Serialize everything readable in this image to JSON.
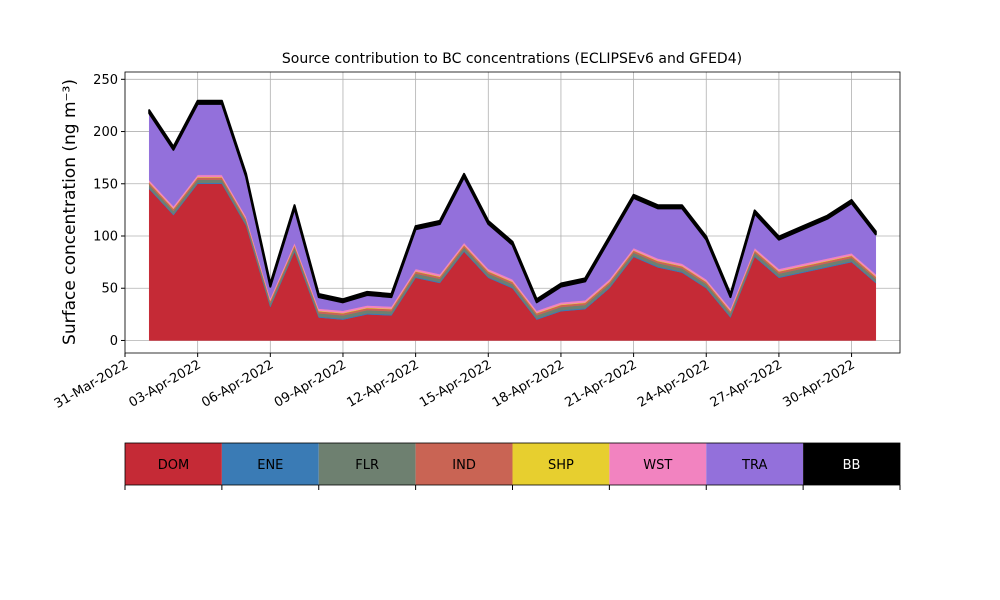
{
  "chart_data": {
    "type": "stacked_area",
    "title": "Source contribution to BC concentrations (ECLIPSEv6 and GFED4)",
    "ylabel": "Surface concentration (ng m⁻³)",
    "x": [
      "2022-04-01",
      "2022-04-02",
      "2022-04-03",
      "2022-04-04",
      "2022-04-05",
      "2022-04-06",
      "2022-04-07",
      "2022-04-08",
      "2022-04-09",
      "2022-04-10",
      "2022-04-11",
      "2022-04-12",
      "2022-04-13",
      "2022-04-14",
      "2022-04-15",
      "2022-04-16",
      "2022-04-17",
      "2022-04-18",
      "2022-04-19",
      "2022-04-20",
      "2022-04-21",
      "2022-04-22",
      "2022-04-23",
      "2022-04-24",
      "2022-04-25",
      "2022-04-26",
      "2022-04-27",
      "2022-04-28",
      "2022-04-29",
      "2022-04-30",
      "2022-05-01"
    ],
    "series": [
      {
        "name": "DOM",
        "color": "#c52a36",
        "values": [
          145,
          120,
          150,
          150,
          110,
          32,
          85,
          22,
          20,
          25,
          24,
          60,
          55,
          85,
          60,
          50,
          20,
          28,
          30,
          50,
          80,
          70,
          65,
          50,
          22,
          80,
          60,
          65,
          70,
          75,
          55
        ]
      },
      {
        "name": "ENE",
        "color": "#3a7bb5",
        "values": [
          1,
          1,
          1,
          1,
          1,
          1,
          1,
          1,
          1,
          1,
          1,
          1,
          1,
          1,
          1,
          1,
          1,
          1,
          1,
          1,
          1,
          1,
          1,
          1,
          1,
          1,
          1,
          1,
          1,
          1,
          1
        ]
      },
      {
        "name": "FLR",
        "color": "#6e8070",
        "values": [
          3,
          3,
          3,
          3,
          3,
          3,
          3,
          3,
          3,
          3,
          3,
          3,
          3,
          3,
          3,
          3,
          3,
          3,
          3,
          3,
          3,
          3,
          3,
          3,
          3,
          3,
          3,
          3,
          3,
          3,
          3
        ]
      },
      {
        "name": "IND",
        "color": "#c96454",
        "values": [
          2,
          2,
          2,
          2,
          2,
          2,
          2,
          2,
          2,
          2,
          2,
          2,
          2,
          2,
          2,
          2,
          2,
          2,
          2,
          2,
          2,
          2,
          2,
          2,
          2,
          2,
          2,
          2,
          2,
          2,
          2
        ]
      },
      {
        "name": "SHP",
        "color": "#e7cf2f",
        "values": [
          0.5,
          0.5,
          0.5,
          0.5,
          0.5,
          0.5,
          0.5,
          0.5,
          0.5,
          0.5,
          0.5,
          0.5,
          0.5,
          0.5,
          0.5,
          0.5,
          0.5,
          0.5,
          0.5,
          0.5,
          0.5,
          0.5,
          0.5,
          0.5,
          0.5,
          0.5,
          0.5,
          0.5,
          0.5,
          0.5,
          0.5
        ]
      },
      {
        "name": "WST",
        "color": "#f283c0",
        "values": [
          2,
          2,
          2,
          2,
          2,
          2,
          2,
          2,
          2,
          2,
          2,
          2,
          2,
          2,
          2,
          2,
          2,
          2,
          2,
          2,
          2,
          2,
          2,
          2,
          2,
          2,
          2,
          2,
          2,
          2,
          2
        ]
      },
      {
        "name": "TRA",
        "color": "#9370db",
        "values": [
          64,
          54,
          68,
          68,
          38,
          11,
          33,
          11,
          8,
          10,
          9,
          38,
          48,
          63,
          43,
          33,
          8,
          15,
          18,
          38,
          48,
          48,
          53,
          38,
          11,
          33,
          28,
          33,
          38,
          48,
          38
        ]
      },
      {
        "name": "BB",
        "color": "#000000",
        "values": [
          3,
          3,
          3,
          3,
          3,
          3,
          3,
          3,
          3,
          3,
          3,
          3,
          3,
          3,
          3,
          3,
          3,
          3,
          3,
          3,
          3,
          3,
          3,
          3,
          3,
          3,
          3,
          3,
          3,
          3,
          3
        ]
      }
    ],
    "xlim": [
      "2022-03-31",
      "2022-05-02"
    ],
    "xticks": [
      {
        "value": "2022-03-31",
        "label": "31-Mar-2022"
      },
      {
        "value": "2022-04-03",
        "label": "03-Apr-2022"
      },
      {
        "value": "2022-04-06",
        "label": "06-Apr-2022"
      },
      {
        "value": "2022-04-09",
        "label": "09-Apr-2022"
      },
      {
        "value": "2022-04-12",
        "label": "12-Apr-2022"
      },
      {
        "value": "2022-04-15",
        "label": "15-Apr-2022"
      },
      {
        "value": "2022-04-18",
        "label": "18-Apr-2022"
      },
      {
        "value": "2022-04-21",
        "label": "21-Apr-2022"
      },
      {
        "value": "2022-04-24",
        "label": "24-Apr-2022"
      },
      {
        "value": "2022-04-27",
        "label": "27-Apr-2022"
      },
      {
        "value": "2022-04-30",
        "label": "30-Apr-2022"
      }
    ],
    "ylim": [
      -12,
      257
    ],
    "yticks": [
      0,
      50,
      100,
      150,
      200,
      250
    ],
    "grid": true
  }
}
